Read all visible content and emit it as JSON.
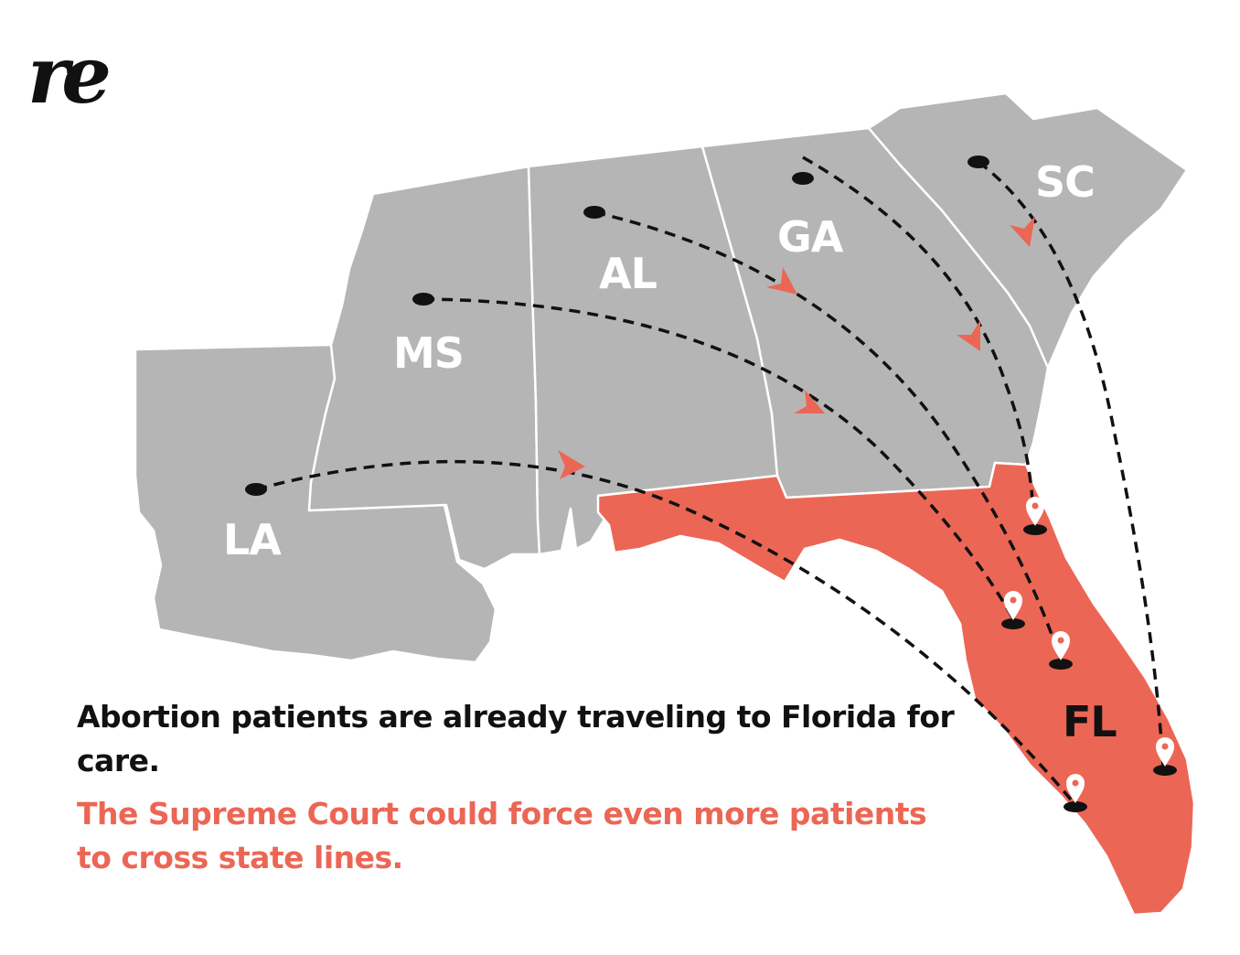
{
  "brand": {
    "logo_text": "re"
  },
  "map": {
    "states": [
      {
        "code": "LA",
        "label": "LA",
        "role": "origin"
      },
      {
        "code": "MS",
        "label": "MS",
        "role": "origin"
      },
      {
        "code": "AL",
        "label": "AL",
        "role": "origin"
      },
      {
        "code": "GA",
        "label": "GA",
        "role": "origin"
      },
      {
        "code": "SC",
        "label": "SC",
        "role": "origin"
      },
      {
        "code": "FL",
        "label": "FL",
        "role": "destination"
      }
    ],
    "colors": {
      "origin_states": "#b5b5b5",
      "destination_state": "#ec6655",
      "routes": "#111111",
      "arrows": "#ec6655",
      "origin_markers": "#111111",
      "destination_pins": "#ffffff"
    },
    "routes": [
      {
        "from": "LA",
        "to": "FL"
      },
      {
        "from": "MS",
        "to": "FL"
      },
      {
        "from": "AL",
        "to": "FL"
      },
      {
        "from": "GA",
        "to": "FL"
      },
      {
        "from": "SC",
        "to": "FL"
      }
    ],
    "destination_pin_icon": "location-pin-icon",
    "origin_marker_icon": "dot-icon"
  },
  "caption": {
    "line1": "Abortion patients are already traveling to Florida for care.",
    "line2": "The Supreme Court could force even more patients to cross state lines."
  }
}
